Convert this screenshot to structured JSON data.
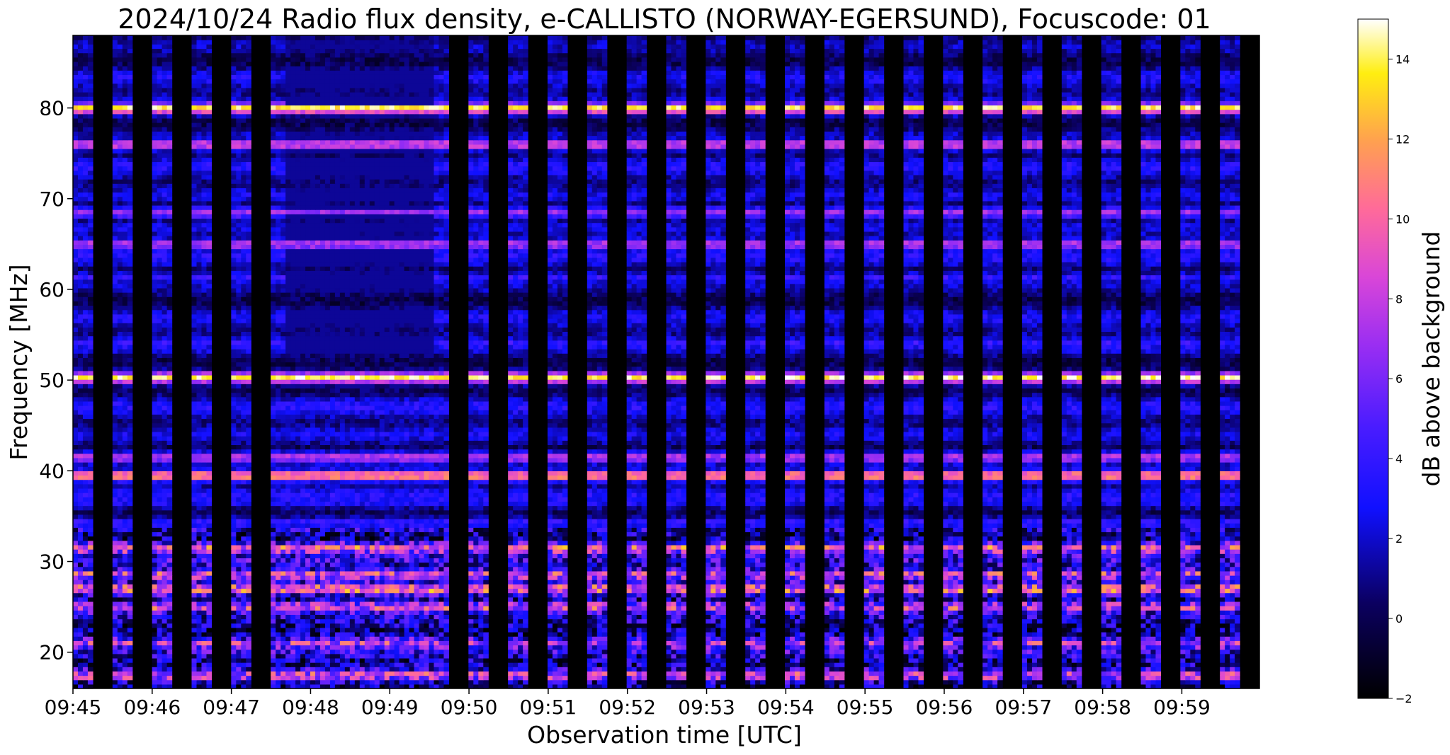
{
  "chart_data": {
    "type": "heatmap",
    "title": "2024/10/24  Radio flux density, e-CALLISTO (NORWAY-EGERSUND), Focuscode: 01",
    "xlabel": "Observation time [UTC]",
    "ylabel": "Frequency [MHz]",
    "x_tick_labels": [
      "09:45",
      "09:46",
      "09:47",
      "09:48",
      "09:49",
      "09:50",
      "09:51",
      "09:52",
      "09:53",
      "09:54",
      "09:55",
      "09:56",
      "09:57",
      "09:58",
      "09:59"
    ],
    "x_range_minutes": [
      0,
      14.98
    ],
    "y_ticks": [
      20,
      30,
      40,
      50,
      60,
      70,
      80
    ],
    "ylim": [
      16,
      88
    ],
    "colorbar": {
      "label": "dB above background",
      "range": [
        -2,
        15
      ],
      "ticks": [
        -2,
        0,
        2,
        4,
        6,
        8,
        10,
        12,
        14
      ],
      "colormap": "gnuplot2"
    },
    "flagged_interval_minutes": [
      2.67,
      4.55
    ],
    "dropout_period_minutes": 0.5,
    "dropout_width_minutes": 0.24,
    "bright_bands_mhz": [
      {
        "freq": 80.0,
        "db": 14
      },
      {
        "freq": 76.0,
        "db": 9
      },
      {
        "freq": 70.3,
        "db": 3
      },
      {
        "freq": 68.5,
        "db": 7
      },
      {
        "freq": 65.0,
        "db": 8
      },
      {
        "freq": 61.3,
        "db": 4
      },
      {
        "freq": 54.2,
        "db": 4
      },
      {
        "freq": 50.3,
        "db": 14
      },
      {
        "freq": 44.2,
        "db": 3
      },
      {
        "freq": 41.5,
        "db": 8
      },
      {
        "freq": 39.5,
        "db": 12
      },
      {
        "freq": 36.5,
        "db": 3
      },
      {
        "freq": 34.3,
        "db": 4
      },
      {
        "freq": 31.5,
        "db": 9
      },
      {
        "freq": 28.6,
        "db": 8
      },
      {
        "freq": 27.0,
        "db": 10
      },
      {
        "freq": 25.0,
        "db": 8
      },
      {
        "freq": 21.0,
        "db": 7
      },
      {
        "freq": 17.5,
        "db": 8
      }
    ]
  }
}
